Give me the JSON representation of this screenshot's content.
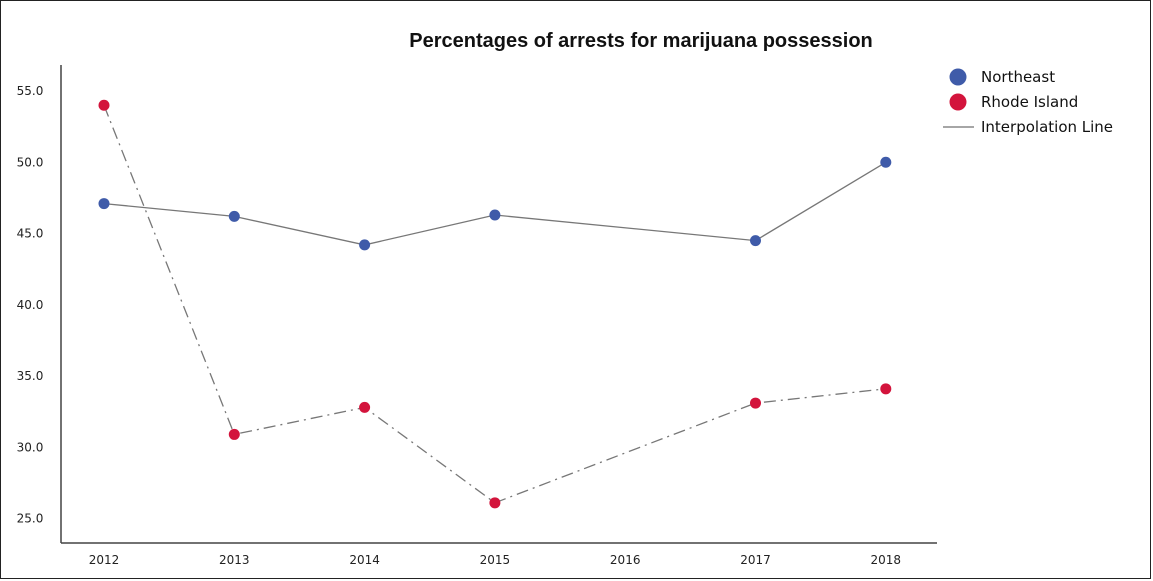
{
  "chart_data": {
    "type": "line",
    "title": "Percentages of arrests for marijuana possession",
    "xlabel": "",
    "ylabel": "",
    "x": [
      2012,
      2013,
      2014,
      2015,
      2016,
      2017,
      2018
    ],
    "x_tick_labels": [
      "2012",
      "2013",
      "2014",
      "2015",
      "2016",
      "2017",
      "2018"
    ],
    "y_tick_labels": [
      "25.0",
      "30.0",
      "35.0",
      "40.0",
      "45.0",
      "50.0",
      "55.0"
    ],
    "y_ticks": [
      25,
      30,
      35,
      40,
      45,
      50,
      55
    ],
    "ylim": [
      24,
      57
    ],
    "grid": false,
    "legend_position": "top-right",
    "series": [
      {
        "name": "Northeast",
        "color": "#3f5ba9",
        "line_style": "solid",
        "points": [
          [
            2012,
            47.1
          ],
          [
            2013,
            46.2
          ],
          [
            2014,
            44.2
          ],
          [
            2015,
            46.3
          ],
          [
            2017,
            44.5
          ],
          [
            2018,
            50.0
          ]
        ]
      },
      {
        "name": "Rhode Island",
        "color": "#d3143c",
        "line_style": "dashdot",
        "points": [
          [
            2012,
            54.0
          ],
          [
            2013,
            30.9
          ],
          [
            2014,
            32.8
          ],
          [
            2015,
            26.1
          ],
          [
            2017,
            33.1
          ],
          [
            2018,
            34.1
          ]
        ]
      }
    ],
    "legend": [
      {
        "label": "Northeast",
        "kind": "marker",
        "color": "#3f5ba9"
      },
      {
        "label": "Rhode Island",
        "kind": "marker",
        "color": "#d3143c"
      },
      {
        "label": "Interpolation Line",
        "kind": "line",
        "color": "#888888"
      }
    ]
  }
}
